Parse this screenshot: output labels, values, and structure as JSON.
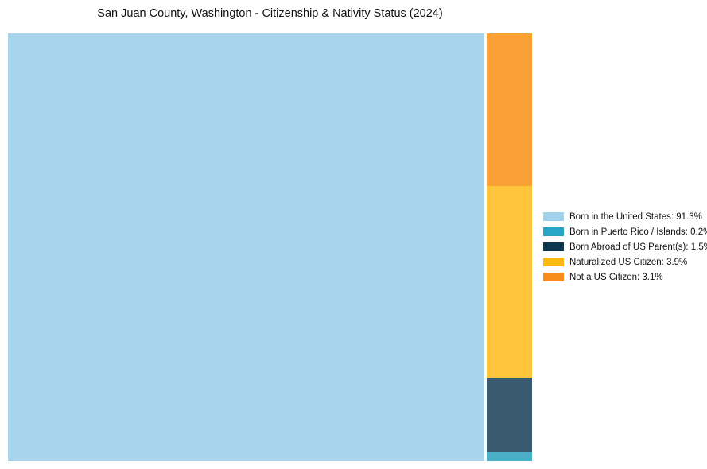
{
  "title": "San Juan County, Washington - Citizenship & Nativity Status (2024)",
  "chart_data": {
    "type": "treemap",
    "title": "San Juan County, Washington - Citizenship & Nativity Status (2024)",
    "legend_position": "right",
    "layout": "large block left, remainder stacked in right column top-to-bottom: Not a US Citizen, Naturalized US Citizen, Born Abroad of US Parent(s), Born in Puerto Rico / Islands",
    "items": [
      {
        "label": "Born in the United States",
        "value": 91.3,
        "legend_text": "Born in the United States: 91.3%",
        "chart_color": "#A8D5EC",
        "legend_color": "#A0D3EB"
      },
      {
        "label": "Born in Puerto Rico / Islands",
        "value": 0.2,
        "legend_text": "Born in Puerto Rico / Islands: 0.2%",
        "chart_color": "#4BAFC8",
        "legend_color": "#29A5C6"
      },
      {
        "label": "Born Abroad of US Parent(s)",
        "value": 1.5,
        "legend_text": "Born Abroad of US Parent(s): 1.5%",
        "chart_color": "#3A5A70",
        "legend_color": "#0F384F"
      },
      {
        "label": "Naturalized US Citizen",
        "value": 3.9,
        "legend_text": "Naturalized US Citizen: 3.9%",
        "chart_color": "#FEC53C",
        "legend_color": "#FDB910"
      },
      {
        "label": "Not a US Citizen",
        "value": 3.1,
        "legend_text": "Not a US Citizen: 3.1%",
        "chart_color": "#F9A134",
        "legend_color": "#F78B1B"
      }
    ]
  }
}
